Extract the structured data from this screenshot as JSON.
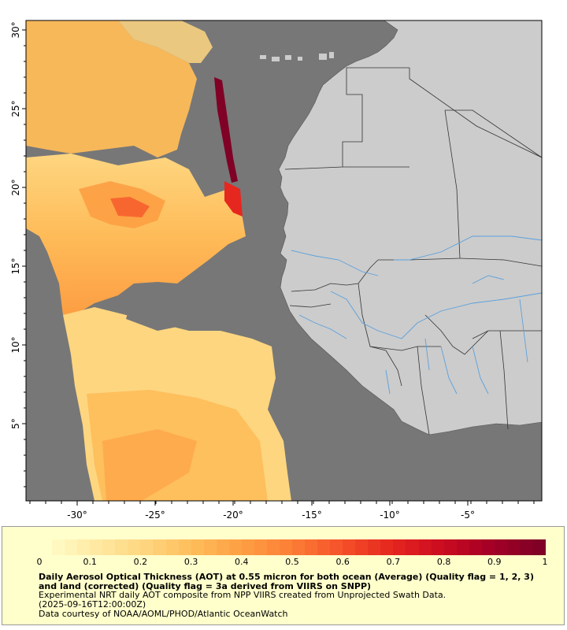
{
  "map": {
    "lat_labels": [
      "30°",
      "25°",
      "20°",
      "15°",
      "10°",
      "5°"
    ],
    "lon_labels": [
      "-30°",
      "-25°",
      "-20°",
      "-15°",
      "-10°",
      "-5°"
    ],
    "colors": {
      "ocean": "#777777",
      "land": "#cccccc",
      "border": "#333333",
      "river": "#5aa0dd",
      "frame": "#000000"
    }
  },
  "legend": {
    "colorbar_ticks": [
      "0",
      "0.1",
      "0.2",
      "0.3",
      "0.4",
      "0.5",
      "0.6",
      "0.7",
      "0.8",
      "0.9",
      "1"
    ],
    "colorbar_colors": [
      "#ffffcc",
      "#ffe9a3",
      "#fed680",
      "#febc59",
      "#fd9e43",
      "#fc7e35",
      "#f5512a",
      "#e6271f",
      "#cc0c20",
      "#a50026",
      "#800026"
    ],
    "title": "Daily Aerosol Optical Thickness (AOT) at 0.55 micron for both ocean (Average) (Quality flag = 1, 2, 3) and land (corrected) (Quality flag = 3a derived from VIIRS on SNPP)",
    "line1": "Experimental NRT daily AOT composite from NPP VIIRS created from Unprojected Swath Data.",
    "line2": "(2025-09-16T12:00:00Z)",
    "line3": "Data courtesy of NOAA/AOML/PHOD/Atlantic OceanWatch"
  }
}
